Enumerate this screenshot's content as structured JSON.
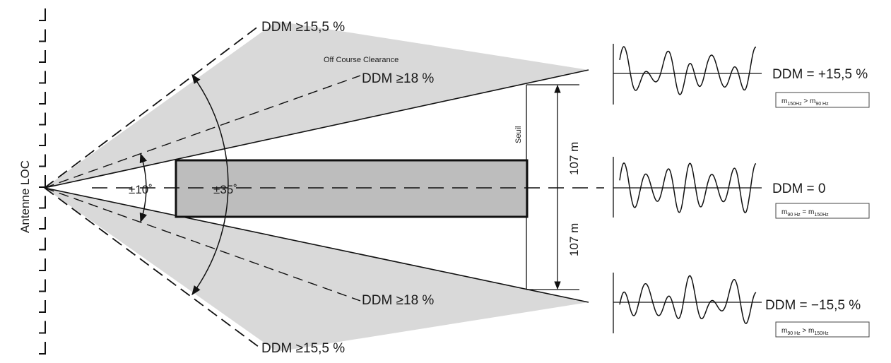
{
  "antenna_label": "Antenne LOC",
  "upper_outer_label": {
    "prefix": "DDM ",
    "value": "15,5 %"
  },
  "upper_inner_label": {
    "prefix": "DDM ",
    "value": "18 %"
  },
  "lower_inner_label": {
    "prefix": "DDM ",
    "value": "18 %"
  },
  "lower_outer_label": {
    "prefix": "DDM ",
    "value": "15,5 %"
  },
  "ge_symbol": "≥",
  "clearance_label": "Off Course Clearance",
  "angle_inner": "±10˚",
  "angle_outer": "±35˚",
  "threshold_label": "Seuil",
  "dist_upper": "107 m",
  "dist_lower": "107 m",
  "signals": [
    {
      "ddm": "DDM = +15,5 %",
      "cond": {
        "a": "m",
        "a_sub": "150Hz",
        "op": " > ",
        "b": "m",
        "b_sub": "90 Hz"
      }
    },
    {
      "ddm": "DDM = 0",
      "cond": {
        "a": "m",
        "a_sub": "90 Hz",
        "op": " = ",
        "b": "m",
        "b_sub": "150Hz"
      }
    },
    {
      "ddm": "DDM = −15,5 %",
      "cond": {
        "a": "m",
        "a_sub": "90 Hz",
        "op": " > ",
        "b": "m",
        "b_sub": "150Hz"
      }
    }
  ]
}
